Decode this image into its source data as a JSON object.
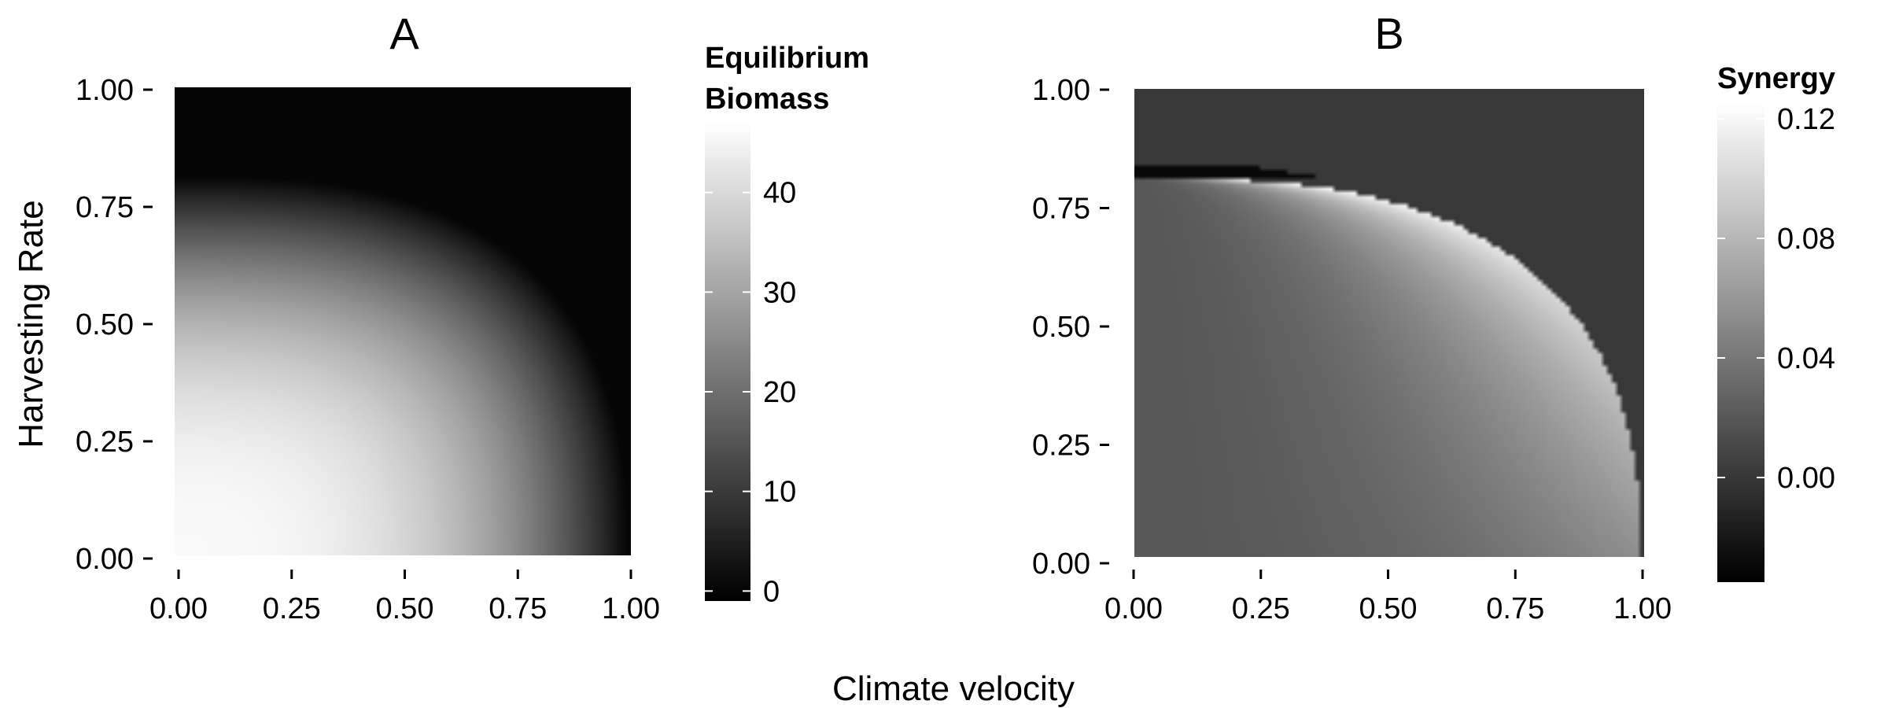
{
  "figure": {
    "shared_xlabel": "Climate velocity",
    "shared_ylabel": "Harvesting Rate"
  },
  "chart_data": [
    {
      "type": "heatmap",
      "panel": "A",
      "title": "A",
      "xlabel": "Climate velocity",
      "ylabel": "Harvesting Rate",
      "xlim": [
        0,
        1
      ],
      "ylim": [
        0,
        1
      ],
      "xticks": [
        "0.00",
        "0.25",
        "0.50",
        "0.75",
        "1.00"
      ],
      "yticks": [
        "0.00",
        "0.25",
        "0.50",
        "0.75",
        "1.00"
      ],
      "grid": false,
      "colormap": {
        "low": "#000000",
        "high": "#ffffff"
      },
      "value_model": "biomass ≈ 46·(1 - v^2.8/0.98 - (h/0.81)^2.5), clipped at 0; region beyond boundary = 0",
      "legend": {
        "title_lines": [
          "Equilibrium",
          "Biomass"
        ],
        "ticks": [
          "0",
          "10",
          "20",
          "30",
          "40"
        ],
        "tick_values": [
          0,
          10,
          20,
          30,
          40
        ],
        "range": [
          -1,
          47
        ],
        "placement": "right"
      },
      "sample_values": [
        {
          "x": 0.0,
          "y": 0.0,
          "z": 46
        },
        {
          "x": 0.25,
          "y": 0.25,
          "z": 42
        },
        {
          "x": 0.5,
          "y": 0.5,
          "z": 28
        },
        {
          "x": 0.75,
          "y": 0.25,
          "z": 23
        },
        {
          "x": 0.0,
          "y": 0.75,
          "z": 15
        },
        {
          "x": 0.9,
          "y": 0.9,
          "z": 0
        }
      ]
    },
    {
      "type": "heatmap",
      "panel": "B",
      "title": "B",
      "xlabel": "Climate velocity",
      "ylabel": "Harvesting Rate",
      "xlim": [
        0,
        1
      ],
      "ylim": [
        0,
        1
      ],
      "xticks": [
        "0.00",
        "0.25",
        "0.50",
        "0.75",
        "1.00"
      ],
      "yticks": [
        "0.00",
        "0.25",
        "0.50",
        "0.75",
        "1.00"
      ],
      "grid": false,
      "colormap": {
        "low": "#000000",
        "high": "#ffffff"
      },
      "value_model": "synergy ≈ 0 far from the collapse boundary, rising to ≈0.12 near it; outside boundary = 0; thin negative band (≈-0.03) just above boundary for velocity < 0.55",
      "legend": {
        "title_lines": [
          "Synergy"
        ],
        "ticks": [
          "0.00",
          "0.04",
          "0.08",
          "0.12"
        ],
        "tick_values": [
          0.0,
          0.04,
          0.08,
          0.12
        ],
        "range": [
          -0.035,
          0.125
        ],
        "placement": "right"
      },
      "sample_values": [
        {
          "x": 0.0,
          "y": 0.0,
          "z": 0.0
        },
        {
          "x": 0.5,
          "y": 0.5,
          "z": 0.05
        },
        {
          "x": 0.75,
          "y": 0.62,
          "z": 0.11
        },
        {
          "x": 0.52,
          "y": 0.77,
          "z": 0.12
        },
        {
          "x": 0.1,
          "y": 0.83,
          "z": -0.03
        },
        {
          "x": 0.9,
          "y": 0.9,
          "z": 0.0
        }
      ]
    }
  ]
}
